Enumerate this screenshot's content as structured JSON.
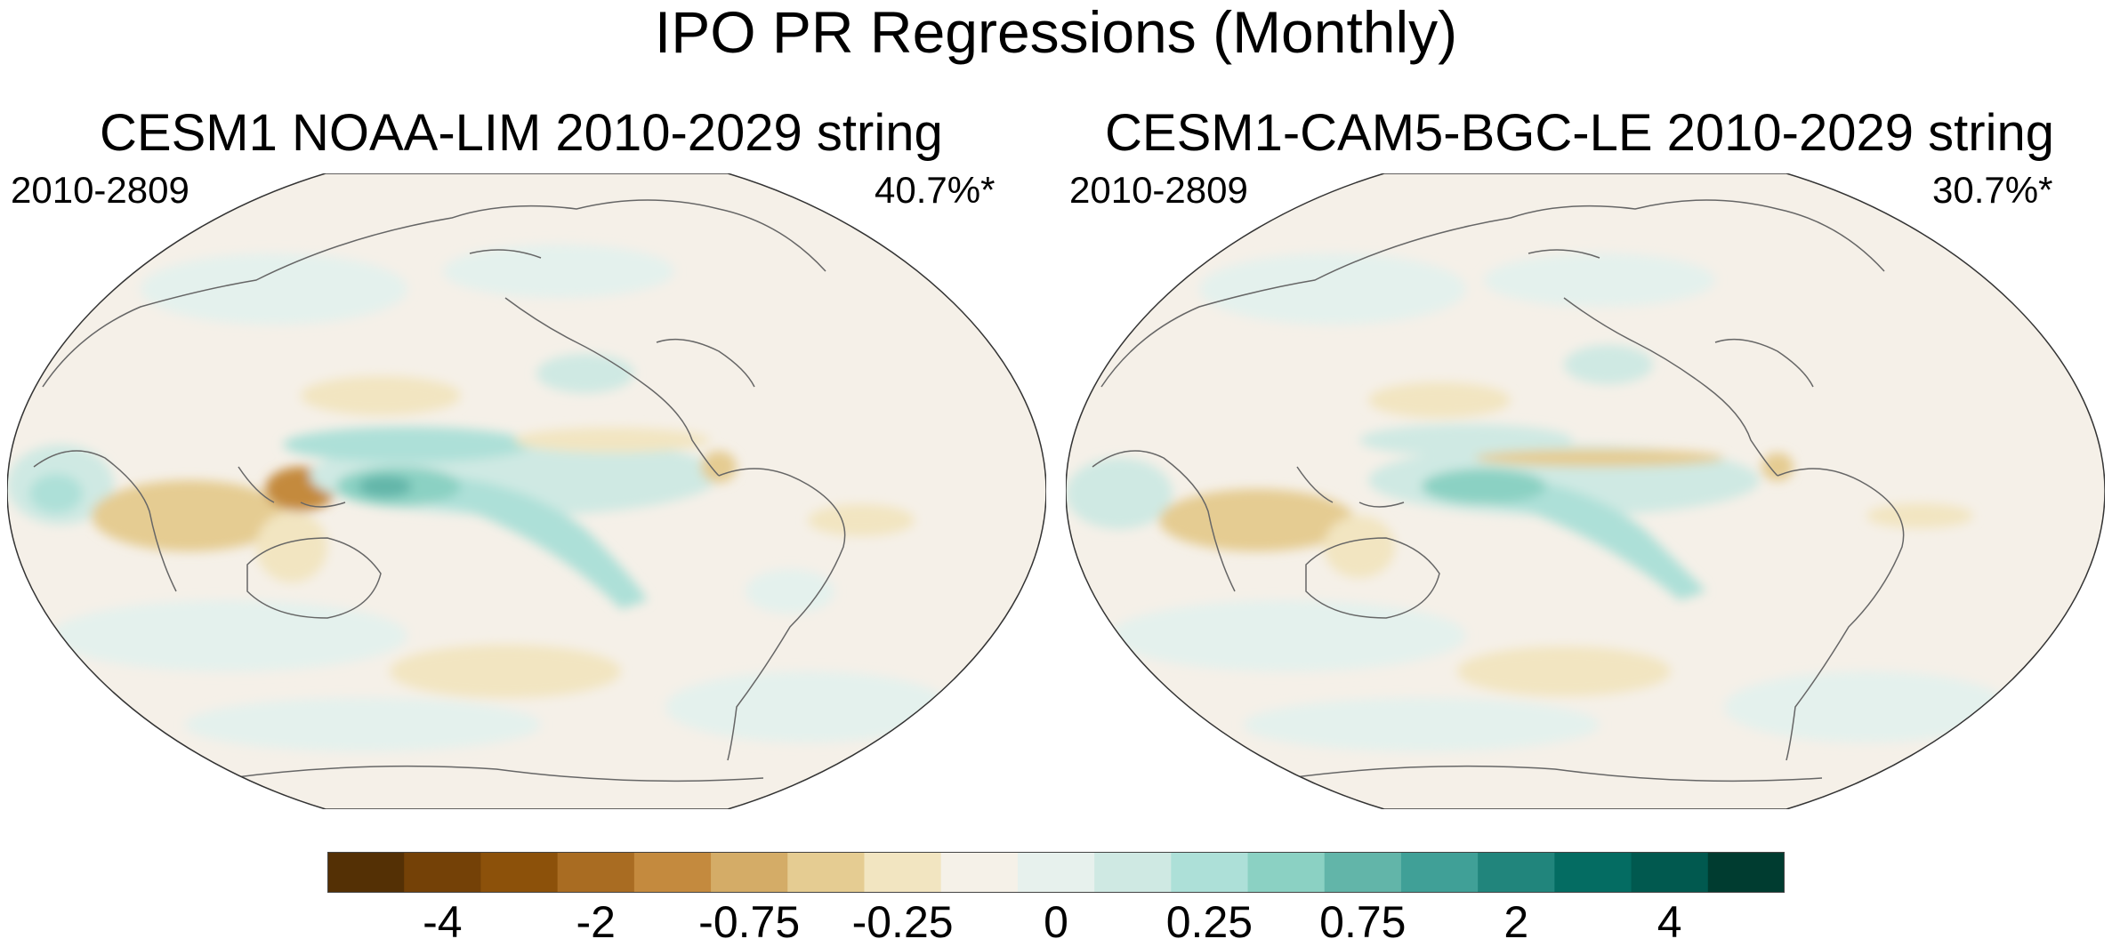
{
  "title": "IPO PR Regressions (Monthly)",
  "panels": [
    {
      "title": "CESM1 NOAA-LIM 2010-2029 string",
      "period": "2010-2809",
      "percent": "40.7%*"
    },
    {
      "title": "CESM1-CAM5-BGC-LE 2010-2029 string",
      "period": "2010-2809",
      "percent": "30.7%*"
    }
  ],
  "colorbar": {
    "colors": [
      "#543005",
      "#744107",
      "#8c510a",
      "#a96c22",
      "#c48a3e",
      "#d4ac67",
      "#e5cc92",
      "#f2e5c1",
      "#f5f1e8",
      "#e7f1ed",
      "#cfe9e3",
      "#ade0d8",
      "#8bd1c3",
      "#62b5a9",
      "#40a097",
      "#21857c",
      "#046c62",
      "#01594f",
      "#003c30"
    ],
    "labels": [
      "-4",
      "-2",
      "-0.75",
      "-0.25",
      "0",
      "0.25",
      "0.75",
      "2",
      "4"
    ],
    "label_bins": [
      2,
      4,
      6,
      8,
      10,
      12,
      14,
      16,
      18
    ]
  },
  "colors": {
    "land": "#f5f0e8",
    "ocean_pos_weak": "#e4f1ed",
    "ocean_pos": "#cfe9e3",
    "ocean_pos_mid": "#ade0d8",
    "ocean_pos_strong": "#62b5a9",
    "neg_weak": "#f2e5c1",
    "neg": "#e5cc92",
    "neg_strong": "#c48a3e",
    "coast": "#555555"
  }
}
